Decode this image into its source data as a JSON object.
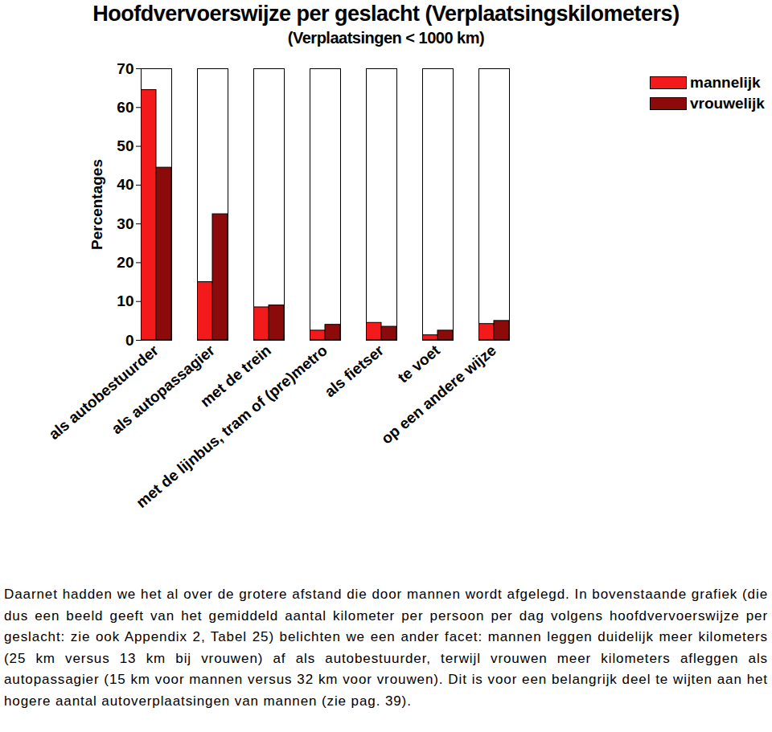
{
  "chart_data": {
    "type": "bar",
    "title": "Hoofdvervoerswijze per geslacht (Verplaatsingskilometers)",
    "subtitle": "(Verplaatsingen < 1000 km)",
    "y_label": "Percentages",
    "categories": [
      "als autobestuurder",
      "als autopassagier",
      "met de trein",
      "met de lijnbus, tram of (pre)metro",
      "als fietser",
      "te voet",
      "op een andere wijze"
    ],
    "series": [
      {
        "name": "mannelijk",
        "color": "#f21a1a",
        "values": [
          64.5,
          15,
          8.5,
          2.5,
          4.5,
          1.3,
          4.2
        ]
      },
      {
        "name": "vrouwelijk",
        "color": "#8c0a0a",
        "values": [
          44.5,
          32.5,
          9,
          4,
          3.5,
          2.5,
          5
        ]
      }
    ],
    "ylim": [
      0,
      70
    ],
    "yticks": [
      0,
      10,
      20,
      30,
      40,
      50,
      60,
      70
    ],
    "grid": false,
    "legend": "top-right",
    "caption": "Daarnet hadden we het al over de grotere afstand die door mannen wordt afgelegd. In bovenstaande grafiek (die dus een beeld geeft van het gemiddeld aantal kilometer per persoon per dag volgens hoofdvervoerswijze per geslacht: zie ook Appendix 2, Tabel 25) belichten we een ander facet: mannen leggen duidelijk meer kilometers (25 km versus 13 km bij vrouwen) af als autobestuurder, terwijl vrouwen meer kilometers afleggen als autopassagier (15 km voor mannen versus 32 km voor vrouwen). Dit is voor een belangrijk deel te wijten aan het hogere aantal autoverplaatsingen van mannen (zie pag. 39)."
  }
}
